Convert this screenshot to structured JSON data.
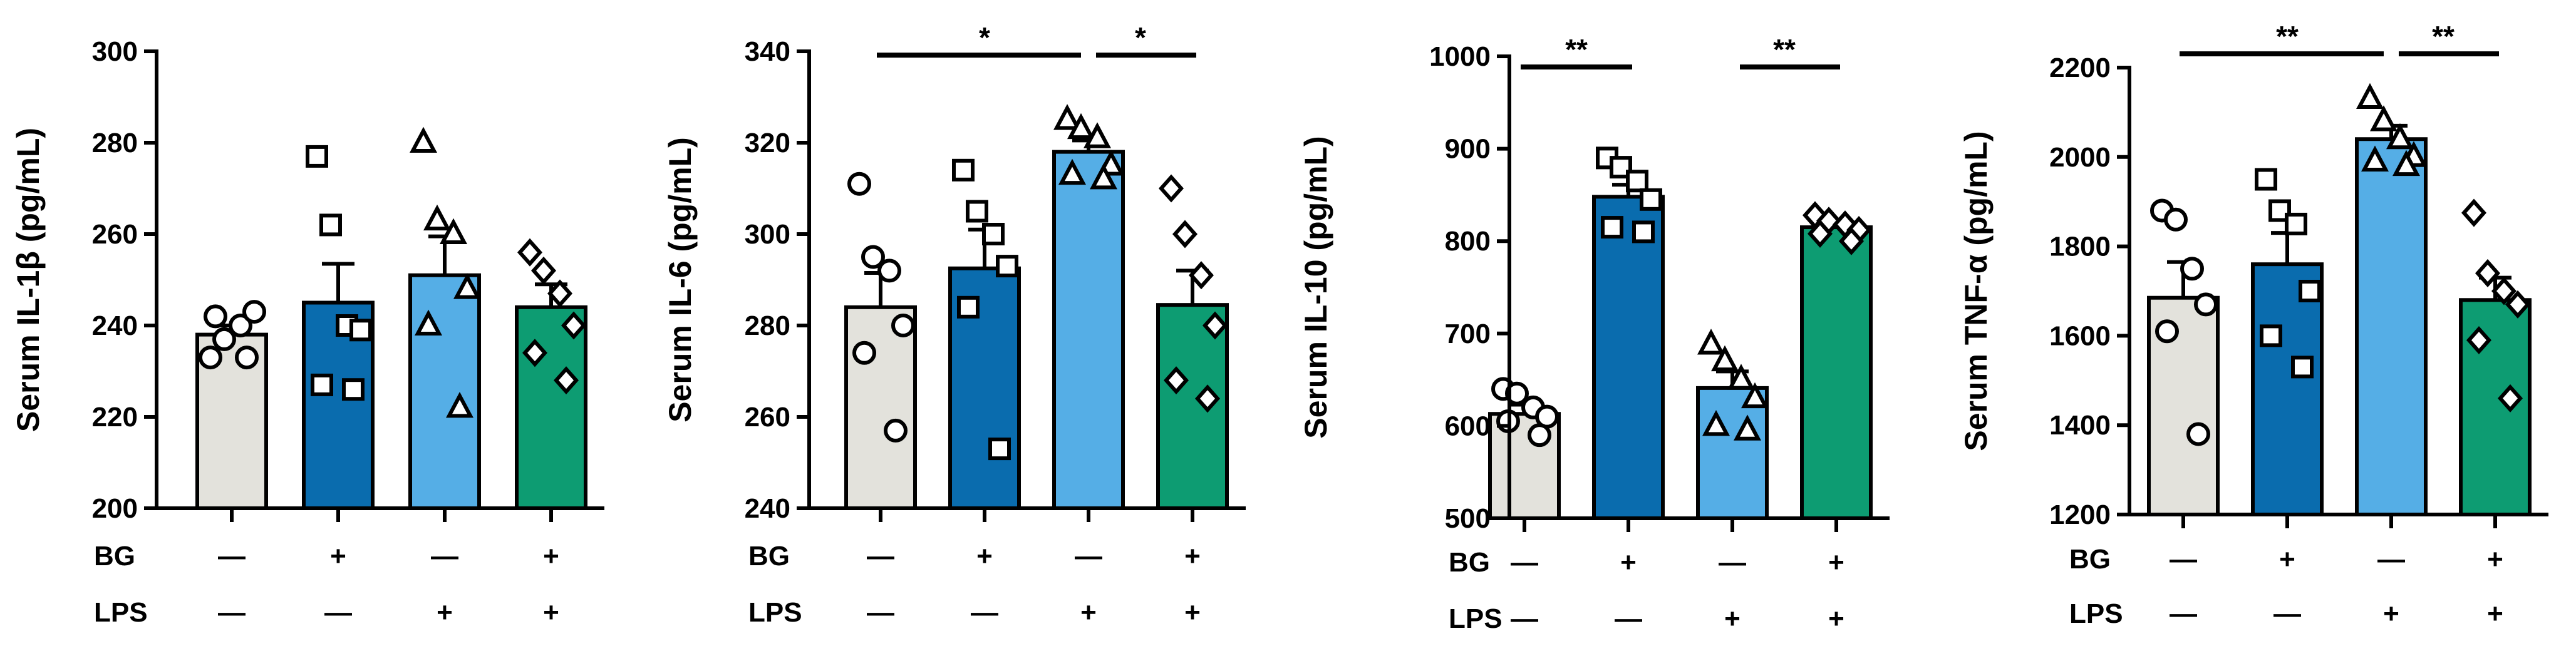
{
  "figure": {
    "row_labels": [
      "BG",
      "LPS"
    ]
  },
  "chart_data": [
    {
      "type": "bar",
      "ylabel": "Serum IL-1β (pg/mL)",
      "ylim": [
        200,
        300
      ],
      "yticks": [
        200,
        220,
        240,
        260,
        280,
        300
      ],
      "groups": [
        {
          "bg": "—",
          "lps": "—",
          "mean": 238,
          "sem": 2,
          "color": "#E3E2DC",
          "marker": "circle",
          "points": [
            233,
            237,
            240,
            243,
            242,
            233
          ]
        },
        {
          "bg": "+",
          "lps": "—",
          "mean": 245,
          "sem": 8.5,
          "color": "#0A6CAE",
          "marker": "square",
          "points": [
            277,
            262,
            240,
            239,
            227,
            226
          ]
        },
        {
          "bg": "—",
          "lps": "+",
          "mean": 251,
          "sem": 8.5,
          "color": "#55AEE6",
          "marker": "triangle",
          "points": [
            280,
            263,
            260,
            248,
            240,
            222
          ]
        },
        {
          "bg": "+",
          "lps": "+",
          "mean": 244,
          "sem": 5,
          "color": "#0D9C72",
          "marker": "diamond",
          "points": [
            256,
            252,
            247,
            240,
            234,
            228
          ]
        }
      ],
      "significance": []
    },
    {
      "type": "bar",
      "ylabel": "Serum IL-6 (pg/mL)",
      "ylim": [
        240,
        340
      ],
      "yticks": [
        240,
        260,
        280,
        300,
        320,
        340
      ],
      "groups": [
        {
          "bg": "—",
          "lps": "—",
          "mean": 284,
          "sem": 7.5,
          "color": "#E3E2DC",
          "marker": "circle",
          "points": [
            311,
            295,
            292,
            280,
            274,
            257
          ]
        },
        {
          "bg": "+",
          "lps": "—",
          "mean": 292.5,
          "sem": 8.5,
          "color": "#0A6CAE",
          "marker": "square",
          "points": [
            314,
            305,
            300,
            293,
            284,
            253
          ]
        },
        {
          "bg": "—",
          "lps": "+",
          "mean": 318,
          "sem": 2.5,
          "color": "#55AEE6",
          "marker": "triangle",
          "points": [
            325,
            323,
            321,
            315,
            313,
            312
          ]
        },
        {
          "bg": "+",
          "lps": "+",
          "mean": 284.5,
          "sem": 7.5,
          "color": "#0D9C72",
          "marker": "diamond",
          "points": [
            310,
            300,
            291,
            280,
            268,
            264
          ]
        }
      ],
      "significance": [
        {
          "from": 0,
          "to": 2,
          "label": "*"
        },
        {
          "from": 2,
          "to": 3,
          "label": "*"
        }
      ]
    },
    {
      "type": "bar",
      "ylabel": "Serum IL-10 (pg/mL)",
      "ylim": [
        500,
        1000
      ],
      "yticks": [
        500,
        600,
        700,
        800,
        900,
        1000
      ],
      "groups": [
        {
          "bg": "—",
          "lps": "—",
          "mean": 613,
          "sem": 10,
          "color": "#E3E2DC",
          "marker": "circle",
          "points": [
            640,
            635,
            620,
            610,
            605,
            590
          ]
        },
        {
          "bg": "+",
          "lps": "—",
          "mean": 848,
          "sem": 13,
          "color": "#0A6CAE",
          "marker": "square",
          "points": [
            890,
            880,
            865,
            845,
            815,
            810
          ]
        },
        {
          "bg": "—",
          "lps": "+",
          "mean": 641,
          "sem": 18,
          "color": "#55AEE6",
          "marker": "triangle",
          "points": [
            688,
            670,
            650,
            630,
            600,
            595
          ]
        },
        {
          "bg": "+",
          "lps": "+",
          "mean": 815,
          "sem": 5,
          "color": "#0D9C72",
          "marker": "diamond",
          "points": [
            828,
            822,
            818,
            812,
            808,
            800
          ]
        }
      ],
      "significance": [
        {
          "from": 0,
          "to": 1,
          "label": "**"
        },
        {
          "from": 2,
          "to": 3,
          "label": "**"
        }
      ]
    },
    {
      "type": "bar",
      "ylabel": "Serum TNF-α (pg/mL)",
      "ylim": [
        1200,
        2200
      ],
      "yticks": [
        1200,
        1400,
        1600,
        1800,
        2000,
        2200
      ],
      "groups": [
        {
          "bg": "—",
          "lps": "—",
          "mean": 1685,
          "sem": 80,
          "color": "#E3E2DC",
          "marker": "circle",
          "points": [
            1880,
            1860,
            1750,
            1670,
            1610,
            1380
          ]
        },
        {
          "bg": "+",
          "lps": "—",
          "mean": 1760,
          "sem": 70,
          "color": "#0A6CAE",
          "marker": "square",
          "points": [
            1950,
            1880,
            1850,
            1700,
            1600,
            1530
          ]
        },
        {
          "bg": "—",
          "lps": "+",
          "mean": 2040,
          "sem": 30,
          "color": "#55AEE6",
          "marker": "triangle",
          "points": [
            2130,
            2080,
            2040,
            2000,
            1990,
            1980
          ]
        },
        {
          "bg": "+",
          "lps": "+",
          "mean": 1680,
          "sem": 50,
          "color": "#0D9C72",
          "marker": "diamond",
          "points": [
            1875,
            1740,
            1700,
            1670,
            1590,
            1460
          ]
        }
      ],
      "significance": [
        {
          "from": 0,
          "to": 2,
          "label": "**"
        },
        {
          "from": 2,
          "to": 3,
          "label": "**"
        }
      ]
    }
  ]
}
